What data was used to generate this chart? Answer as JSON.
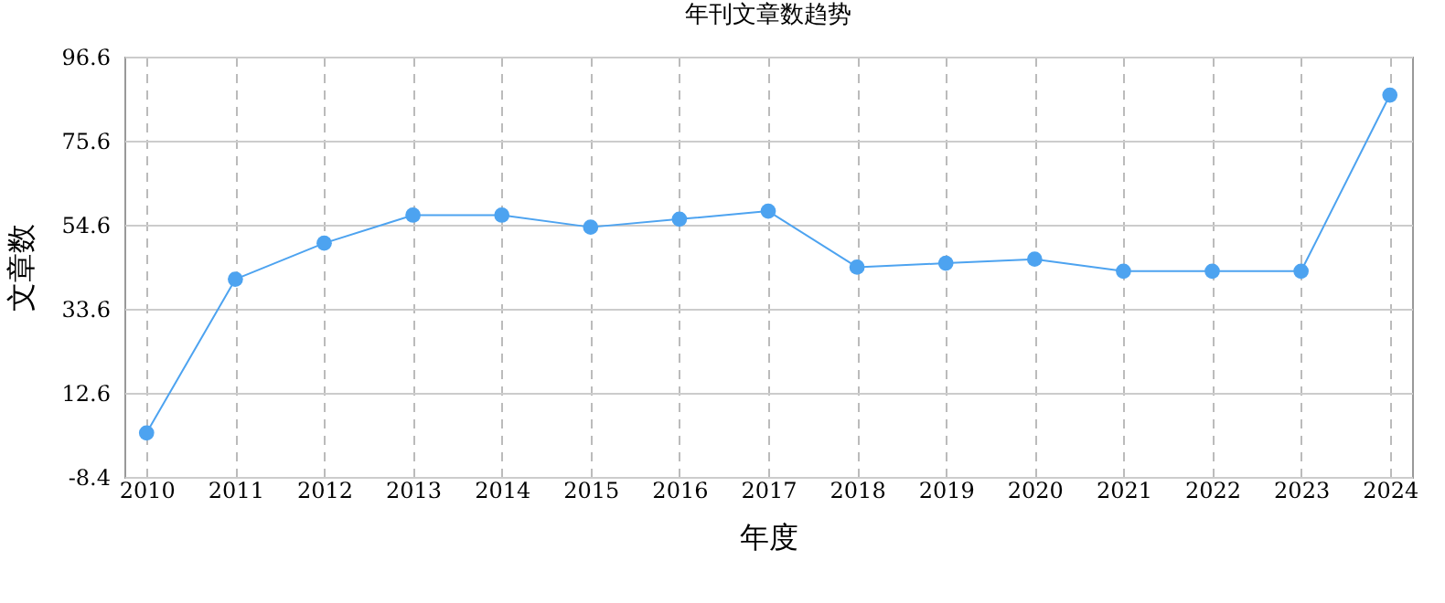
{
  "chart_data": {
    "type": "line",
    "title": "年刊文章数趋势",
    "xlabel": "年度",
    "ylabel": "文章数",
    "categories": [
      "2010",
      "2011",
      "2012",
      "2013",
      "2014",
      "2015",
      "2016",
      "2017",
      "2018",
      "2019",
      "2020",
      "2021",
      "2022",
      "2023",
      "2024"
    ],
    "series": [
      {
        "color": "#4da3f0",
        "values": [
          2.6,
          41,
          50,
          57,
          57,
          54,
          56,
          58,
          44,
          45,
          46,
          43,
          43,
          43,
          87
        ]
      }
    ],
    "ylim": [
      -8.4,
      96.6
    ],
    "yticks": [
      -8.4,
      12.6,
      33.6,
      54.6,
      75.6,
      96.6
    ],
    "grid": true,
    "marker": "circle",
    "line_style": "solid"
  }
}
